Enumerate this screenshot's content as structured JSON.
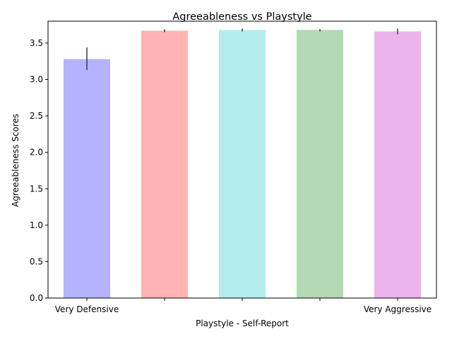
{
  "chart_data": {
    "type": "bar",
    "title": "Agreeableness vs Playstyle",
    "xlabel": "Playstyle - Self-Report",
    "ylabel": "Agreeableness Scores",
    "categories": [
      "Very Defensive",
      "",
      "",
      "",
      "Very Aggressive"
    ],
    "values": [
      3.28,
      3.67,
      3.68,
      3.68,
      3.66
    ],
    "error_low": [
      3.13,
      3.65,
      3.66,
      3.66,
      3.62
    ],
    "error_high": [
      3.44,
      3.69,
      3.7,
      3.69,
      3.7
    ],
    "colors": [
      "#b3b3ff",
      "#ffb3b3",
      "#b3ecec",
      "#b3d9b3",
      "#ecb3ec"
    ],
    "ylim": [
      0,
      3.8
    ],
    "yticks": [
      0.0,
      0.5,
      1.0,
      1.5,
      2.0,
      2.5,
      3.0,
      3.5
    ],
    "grid": false,
    "legend": "none"
  }
}
